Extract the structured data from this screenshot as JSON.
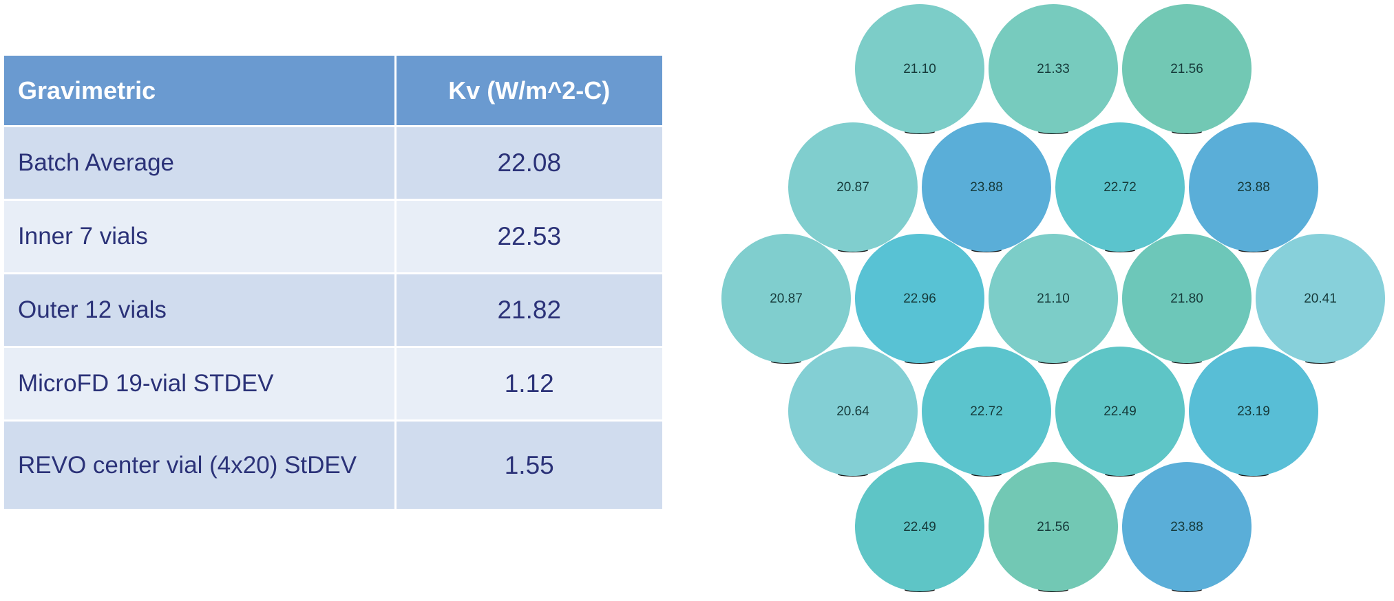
{
  "table": {
    "headers": [
      "Gravimetric",
      "Kv (W/m^2-C)"
    ],
    "rows": [
      {
        "label": "Batch Average",
        "value": "22.08"
      },
      {
        "label": "Inner 7 vials",
        "value": "22.53"
      },
      {
        "label": "Outer 12 vials",
        "value": "21.82"
      },
      {
        "label": "MicroFD 19-vial STDEV",
        "value": "1.12"
      },
      {
        "label": "REVO center vial (4x20) StDEV",
        "value": "1.55"
      }
    ]
  },
  "vials": {
    "rows": [
      [
        "21.10",
        "21.33",
        "21.56"
      ],
      [
        "20.87",
        "23.88",
        "22.72",
        "23.88"
      ],
      [
        "20.87",
        "22.96",
        "21.10",
        "21.80",
        "20.41"
      ],
      [
        "20.64",
        "22.72",
        "22.49",
        "23.19"
      ],
      [
        "22.49",
        "21.56",
        "23.88"
      ]
    ],
    "color_scale": [
      {
        "value": 20.41,
        "color": "#87d0da"
      },
      {
        "value": 21.1,
        "color": "#7ccdc8"
      },
      {
        "value": 21.56,
        "color": "#72c8b4"
      },
      {
        "value": 22.49,
        "color": "#5ec5c6"
      },
      {
        "value": 23.0,
        "color": "#57c2d5"
      },
      {
        "value": 23.88,
        "color": "#5aaed8"
      }
    ]
  }
}
